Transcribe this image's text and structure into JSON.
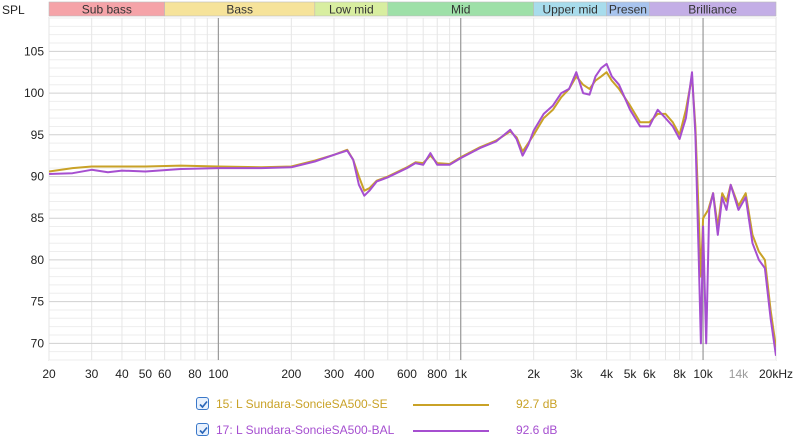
{
  "chart_data": {
    "type": "line",
    "ylabel": "SPL",
    "x_scale": "log",
    "xlim": [
      20,
      20000
    ],
    "ylim": [
      68,
      109
    ],
    "x_ticks": [
      {
        "v": 20,
        "t": "20"
      },
      {
        "v": 30,
        "t": "30"
      },
      {
        "v": 40,
        "t": "40"
      },
      {
        "v": 50,
        "t": "50"
      },
      {
        "v": 60,
        "t": "60"
      },
      {
        "v": 80,
        "t": "80"
      },
      {
        "v": 100,
        "t": "100"
      },
      {
        "v": 200,
        "t": "200"
      },
      {
        "v": 300,
        "t": "300"
      },
      {
        "v": 400,
        "t": "400"
      },
      {
        "v": 600,
        "t": "600"
      },
      {
        "v": 800,
        "t": "800"
      },
      {
        "v": 1000,
        "t": "1k"
      },
      {
        "v": 2000,
        "t": "2k"
      },
      {
        "v": 3000,
        "t": "3k"
      },
      {
        "v": 4000,
        "t": "4k"
      },
      {
        "v": 5000,
        "t": "5k"
      },
      {
        "v": 6000,
        "t": "6k"
      },
      {
        "v": 8000,
        "t": "8k"
      },
      {
        "v": 10000,
        "t": "10k"
      },
      {
        "v": 14000,
        "t": "14k",
        "muted": true
      },
      {
        "v": 20000,
        "t": "20kHz"
      }
    ],
    "y_ticks": [
      70,
      75,
      80,
      85,
      90,
      95,
      100,
      105
    ],
    "grid": true,
    "bands": [
      {
        "label": "Sub bass",
        "from": 20,
        "to": 60,
        "color": "#f5a3a8"
      },
      {
        "label": "Bass",
        "from": 60,
        "to": 250,
        "color": "#f6e39a"
      },
      {
        "label": "Low mid",
        "from": 250,
        "to": 500,
        "color": "#d8eea0"
      },
      {
        "label": "Mid",
        "from": 500,
        "to": 2000,
        "color": "#9ee0a8"
      },
      {
        "label": "Upper mid",
        "from": 2000,
        "to": 4000,
        "color": "#a8dcec"
      },
      {
        "label": "Presen",
        "from": 4000,
        "to": 6000,
        "color": "#a8c4ee"
      },
      {
        "label": "Brilliance",
        "from": 6000,
        "to": 20000,
        "color": "#c3aee6"
      }
    ],
    "series": [
      {
        "name": "15: L Sundara-SoncieSA500-SE",
        "color": "#c9a227",
        "avg": "92.7 dB",
        "points": [
          [
            20,
            90.6
          ],
          [
            25,
            91.0
          ],
          [
            30,
            91.2
          ],
          [
            40,
            91.2
          ],
          [
            50,
            91.2
          ],
          [
            70,
            91.3
          ],
          [
            100,
            91.2
          ],
          [
            150,
            91.1
          ],
          [
            200,
            91.2
          ],
          [
            250,
            91.9
          ],
          [
            300,
            92.6
          ],
          [
            340,
            93.2
          ],
          [
            360,
            92.0
          ],
          [
            380,
            90.0
          ],
          [
            400,
            88.3
          ],
          [
            420,
            88.6
          ],
          [
            450,
            89.5
          ],
          [
            500,
            90.0
          ],
          [
            600,
            91.1
          ],
          [
            650,
            91.7
          ],
          [
            700,
            91.6
          ],
          [
            750,
            92.5
          ],
          [
            800,
            91.6
          ],
          [
            900,
            91.5
          ],
          [
            1000,
            92.3
          ],
          [
            1200,
            93.5
          ],
          [
            1400,
            94.3
          ],
          [
            1600,
            95.4
          ],
          [
            1700,
            94.7
          ],
          [
            1800,
            93.0
          ],
          [
            1900,
            94.0
          ],
          [
            2000,
            95.0
          ],
          [
            2200,
            97.0
          ],
          [
            2400,
            98.0
          ],
          [
            2600,
            99.5
          ],
          [
            2800,
            100.5
          ],
          [
            3000,
            102.0
          ],
          [
            3200,
            101.0
          ],
          [
            3400,
            100.5
          ],
          [
            3600,
            101.5
          ],
          [
            3800,
            102.0
          ],
          [
            4000,
            102.5
          ],
          [
            4200,
            101.5
          ],
          [
            4500,
            100.5
          ],
          [
            5000,
            98.5
          ],
          [
            5500,
            96.5
          ],
          [
            6000,
            96.5
          ],
          [
            6500,
            97.5
          ],
          [
            7000,
            97.5
          ],
          [
            7500,
            96.5
          ],
          [
            8000,
            95.0
          ],
          [
            8500,
            98.0
          ],
          [
            9000,
            102.0
          ],
          [
            9300,
            96.0
          ],
          [
            9600,
            85.0
          ],
          [
            9800,
            78.0
          ],
          [
            10000,
            85.0
          ],
          [
            10500,
            86.0
          ],
          [
            11000,
            88.0
          ],
          [
            11500,
            84.0
          ],
          [
            12000,
            88.0
          ],
          [
            12500,
            87.0
          ],
          [
            13000,
            89.0
          ],
          [
            14000,
            86.5
          ],
          [
            15000,
            88.0
          ],
          [
            16000,
            83.0
          ],
          [
            17000,
            81.0
          ],
          [
            18000,
            80.0
          ],
          [
            19000,
            74.0
          ],
          [
            20000,
            69.5
          ]
        ]
      },
      {
        "name": "17: L Sundara-SoncieSA500-BAL",
        "color": "#a64fd0",
        "avg": "92.6 dB",
        "points": [
          [
            20,
            90.3
          ],
          [
            25,
            90.4
          ],
          [
            30,
            90.8
          ],
          [
            35,
            90.5
          ],
          [
            40,
            90.7
          ],
          [
            50,
            90.6
          ],
          [
            70,
            90.9
          ],
          [
            100,
            91.0
          ],
          [
            150,
            91.0
          ],
          [
            200,
            91.1
          ],
          [
            250,
            91.8
          ],
          [
            300,
            92.6
          ],
          [
            340,
            93.1
          ],
          [
            360,
            92.0
          ],
          [
            380,
            89.0
          ],
          [
            400,
            87.7
          ],
          [
            420,
            88.3
          ],
          [
            450,
            89.4
          ],
          [
            500,
            89.9
          ],
          [
            600,
            91.0
          ],
          [
            650,
            91.6
          ],
          [
            700,
            91.4
          ],
          [
            750,
            92.8
          ],
          [
            800,
            91.4
          ],
          [
            900,
            91.4
          ],
          [
            1000,
            92.2
          ],
          [
            1200,
            93.4
          ],
          [
            1400,
            94.2
          ],
          [
            1600,
            95.6
          ],
          [
            1700,
            94.5
          ],
          [
            1800,
            92.5
          ],
          [
            1900,
            93.8
          ],
          [
            2000,
            95.5
          ],
          [
            2200,
            97.5
          ],
          [
            2400,
            98.5
          ],
          [
            2600,
            100.0
          ],
          [
            2800,
            100.5
          ],
          [
            3000,
            102.5
          ],
          [
            3200,
            100.0
          ],
          [
            3400,
            99.8
          ],
          [
            3600,
            102.0
          ],
          [
            3800,
            103.0
          ],
          [
            4000,
            103.5
          ],
          [
            4200,
            102.0
          ],
          [
            4500,
            101.0
          ],
          [
            5000,
            98.0
          ],
          [
            5500,
            96.0
          ],
          [
            6000,
            96.0
          ],
          [
            6500,
            98.0
          ],
          [
            7000,
            97.0
          ],
          [
            7500,
            96.0
          ],
          [
            8000,
            94.5
          ],
          [
            8500,
            97.0
          ],
          [
            9000,
            102.5
          ],
          [
            9300,
            95.0
          ],
          [
            9600,
            80.0
          ],
          [
            9800,
            70.0
          ],
          [
            10000,
            84.0
          ],
          [
            10300,
            70.0
          ],
          [
            10600,
            86.0
          ],
          [
            11000,
            88.0
          ],
          [
            11500,
            83.0
          ],
          [
            12000,
            87.5
          ],
          [
            12500,
            86.0
          ],
          [
            13000,
            89.0
          ],
          [
            14000,
            86.0
          ],
          [
            15000,
            87.5
          ],
          [
            16000,
            82.0
          ],
          [
            17000,
            80.0
          ],
          [
            18000,
            79.0
          ],
          [
            19000,
            73.0
          ],
          [
            20000,
            68.5
          ]
        ]
      }
    ]
  },
  "legend": [
    {
      "name": "15: L Sundara-SoncieSA500-SE",
      "value": "92.7 dB",
      "checked": true,
      "color": "#c9a227"
    },
    {
      "name": "17: L Sundara-SoncieSA500-BAL",
      "value": "92.6 dB",
      "checked": true,
      "color": "#a64fd0"
    }
  ]
}
